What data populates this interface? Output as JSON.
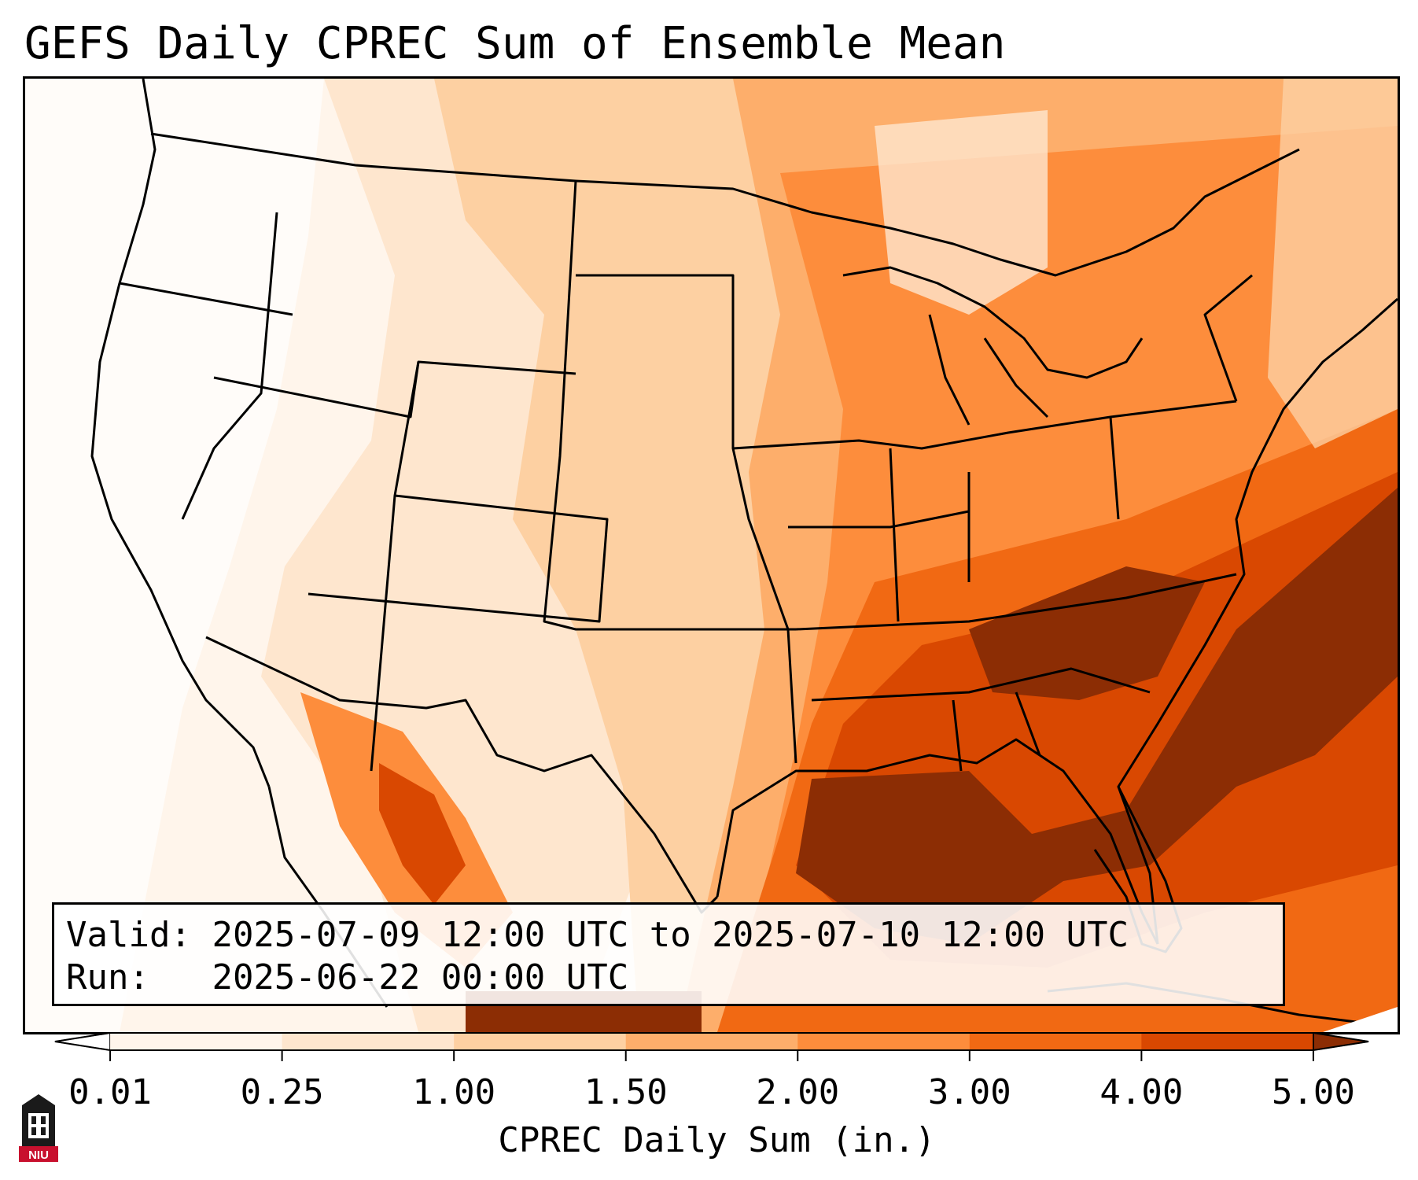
{
  "title": "GEFS Daily CPREC Sum of Ensemble Mean",
  "info": {
    "valid_label": "Valid:",
    "valid_value": "2025-07-09 12:00 UTC to 2025-07-10 12:00 UTC",
    "run_label": "Run:",
    "run_value": "2025-06-22 00:00 UTC"
  },
  "colorbar": {
    "label": "CPREC Daily Sum (in.)",
    "ticks": [
      "0.01",
      "0.25",
      "1.00",
      "1.50",
      "2.00",
      "3.00",
      "4.00",
      "5.00"
    ],
    "colors": [
      "#fff5eb",
      "#fee6ce",
      "#fdd0a2",
      "#fdae6b",
      "#fd8d3c",
      "#f16913",
      "#d94801",
      "#8c2d04"
    ],
    "under_color": "#ffffff",
    "over_color": "#8c2d04"
  },
  "logo": {
    "text": "NIU",
    "colors": {
      "red": "#c8102e",
      "dark": "#1a1a1a"
    }
  },
  "map": {
    "region": "CONUS",
    "highest_totals_area": "Southeast US, Gulf of Mexico and western Atlantic"
  }
}
